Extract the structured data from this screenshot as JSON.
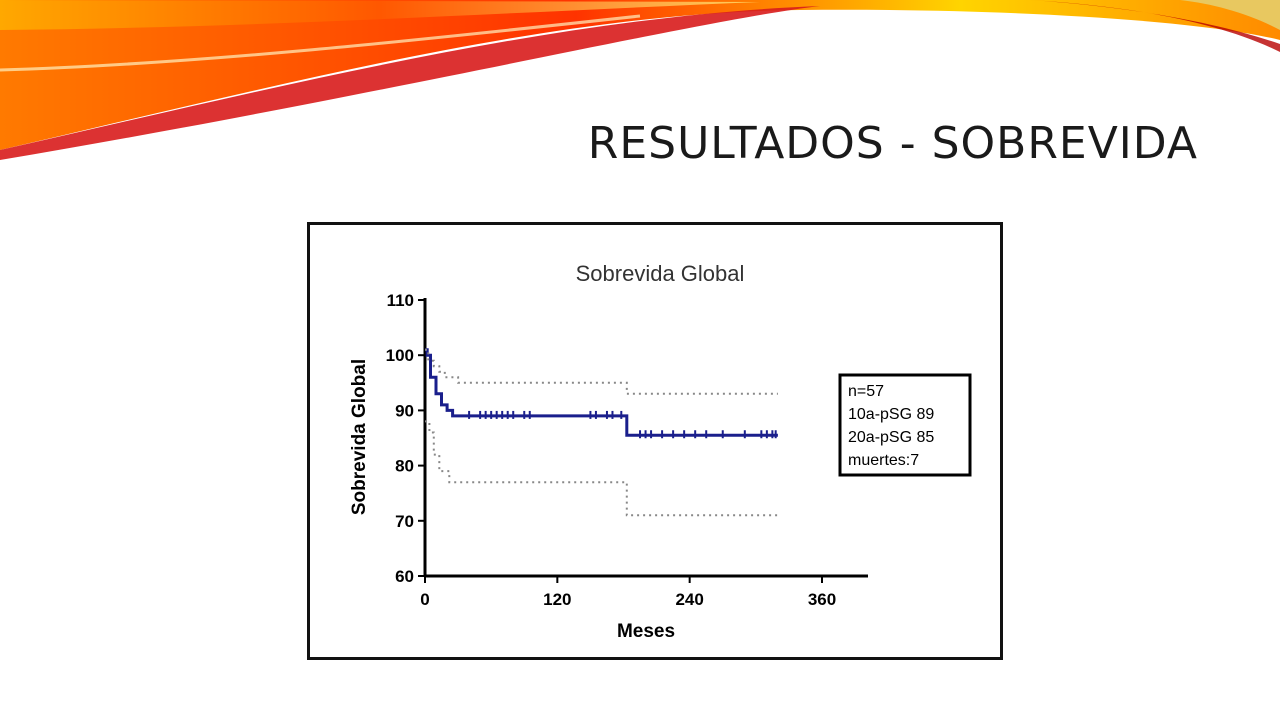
{
  "slide": {
    "title": "RESULTADOS - SOBREVIDA"
  },
  "chart_data": {
    "type": "line",
    "title": "Sobrevida Global",
    "xlabel": "Meses",
    "ylabel": "Sobrevida Global",
    "xlim": [
      0,
      360
    ],
    "ylim": [
      60,
      110
    ],
    "x_ticks": [
      "0",
      "120",
      "240",
      "360"
    ],
    "y_ticks": [
      "60",
      "70",
      "80",
      "90",
      "100",
      "110"
    ],
    "grid": false,
    "series": [
      {
        "line_style": "solid",
        "color": "#1a1f8c",
        "x": [
          0,
          2,
          2,
          5,
          5,
          10,
          10,
          15,
          15,
          20,
          20,
          25,
          25,
          183,
          183,
          320
        ],
        "y": [
          101,
          101,
          100,
          100,
          96,
          96,
          93,
          93,
          91,
          91,
          90,
          90,
          89,
          89,
          85.5,
          85.5
        ]
      },
      {
        "line_style": "dotted",
        "color": "#888888",
        "x": [
          0,
          3,
          3,
          8,
          8,
          13,
          13,
          18,
          18,
          30,
          30,
          183,
          183,
          320
        ],
        "y": [
          101,
          101,
          99,
          99,
          98,
          98,
          97,
          97,
          96,
          96,
          95,
          95,
          93,
          93
        ]
      },
      {
        "line_style": "dotted",
        "color": "#888888",
        "x": [
          0,
          4,
          4,
          8,
          8,
          13,
          13,
          22,
          22,
          183,
          183,
          320
        ],
        "y": [
          88,
          88,
          86,
          86,
          82,
          82,
          79,
          79,
          77,
          77,
          71,
          71
        ]
      }
    ],
    "censor_marks": {
      "x": [
        40,
        50,
        55,
        60,
        65,
        70,
        75,
        80,
        90,
        95,
        150,
        155,
        165,
        170,
        178,
        195,
        200,
        205,
        215,
        225,
        235,
        245,
        255,
        270,
        290,
        305,
        310,
        315,
        318
      ],
      "y": [
        89,
        89,
        89,
        89,
        89,
        89,
        89,
        89,
        89,
        89,
        89,
        89,
        89,
        89,
        89,
        85.5,
        85.5,
        85.5,
        85.5,
        85.5,
        85.5,
        85.5,
        85.5,
        85.5,
        85.5,
        85.5,
        85.5,
        85.5,
        85.5
      ]
    },
    "legend_box": [
      "n=57",
      "10a-pSG 89",
      "20a-pSG 85",
      "muertes:7"
    ],
    "legend_position": "right"
  }
}
